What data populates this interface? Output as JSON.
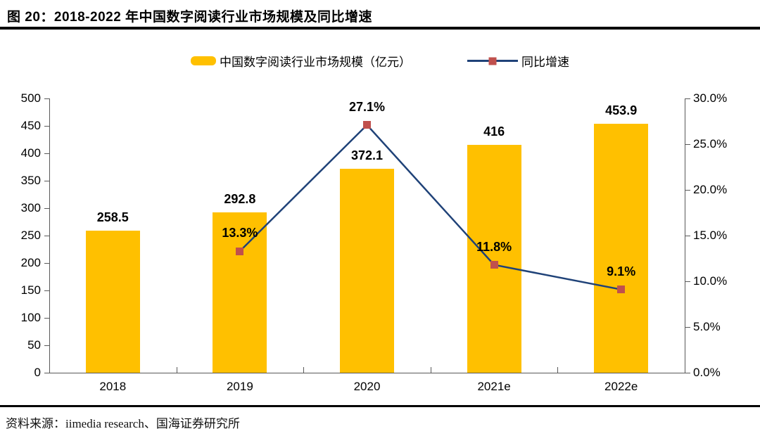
{
  "header": {
    "title": "图 20：2018-2022 年中国数字阅读行业市场规模及同比增速"
  },
  "footer": {
    "source": "资料来源：iimedia research、国海证券研究所"
  },
  "colors": {
    "bar": "#FFC000",
    "line": "#1F4278",
    "marker": "#C0504D",
    "axis": "#595959",
    "text": "#000000",
    "rule": "#000000"
  },
  "chart_data": {
    "type": "bar",
    "overlay": "line",
    "dual_axis": true,
    "grid": false,
    "legend_position": "top-center",
    "categories": [
      "2018",
      "2019",
      "2020",
      "2021e",
      "2022e"
    ],
    "series": [
      {
        "name": "中国数字阅读行业市场规模（亿元）",
        "chart_type": "bar",
        "axis": "left",
        "values": [
          258.5,
          292.8,
          372.1,
          416,
          453.9
        ],
        "data_labels": [
          "258.5",
          "292.8",
          "372.1",
          "416",
          "453.9"
        ],
        "color": "#FFC000"
      },
      {
        "name": "同比增速",
        "chart_type": "line",
        "axis": "right",
        "marker": "square",
        "values": [
          null,
          13.3,
          27.1,
          11.8,
          9.1
        ],
        "data_labels": [
          null,
          "13.3%",
          "27.1%",
          "11.8%",
          "9.1%"
        ],
        "line_color": "#1F4278",
        "marker_color": "#C0504D"
      }
    ],
    "left_axis": {
      "min": 0,
      "max": 500,
      "step": 50,
      "tick_labels": [
        "0",
        "50",
        "100",
        "150",
        "200",
        "250",
        "300",
        "350",
        "400",
        "450",
        "500"
      ]
    },
    "right_axis": {
      "min": 0,
      "max": 30,
      "step": 5,
      "tick_labels": [
        "0.0%",
        "5.0%",
        "10.0%",
        "15.0%",
        "20.0%",
        "25.0%",
        "30.0%"
      ]
    }
  }
}
